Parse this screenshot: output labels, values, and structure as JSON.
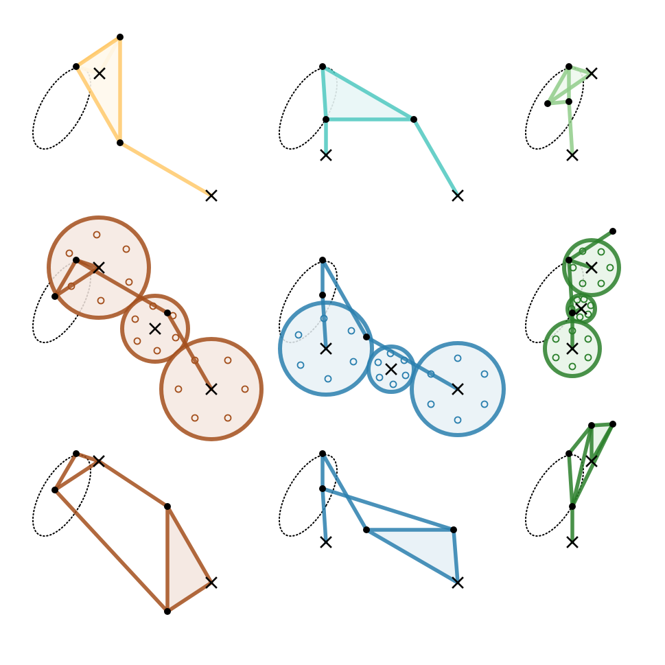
{
  "colors": {
    "background": "#ffffff",
    "marker": "#000000",
    "ellipse": "#000000",
    "panel_1": {
      "stroke": "#ffc96b",
      "fill": "#fff8ec"
    },
    "panel_2": {
      "stroke": "#4fc8c0",
      "fill": "#e8f6f6"
    },
    "panel_3": {
      "stroke": "#90cc8a",
      "fill": "#eef8ed"
    },
    "panel_4": {
      "stroke": "#a34f1c",
      "fill": "#f4e7e0"
    },
    "panel_5": {
      "stroke": "#2a7fae",
      "fill": "#e7f1f6"
    },
    "panel_6": {
      "stroke": "#2a7f2a",
      "fill": "#e6f3e6"
    },
    "panel_7": {
      "stroke": "#a34f1c",
      "fill": "#f4e7e0"
    },
    "panel_8": {
      "stroke": "#2a7fae",
      "fill": "#e7f1f6"
    },
    "panel_9": {
      "stroke": "#2a7f2a",
      "fill": "#e6f3e6"
    }
  },
  "icons": [
    "cross-marker-icon",
    "dot-marker-icon",
    "ring-marker-icon"
  ],
  "panels": [
    {
      "id": "panel-1",
      "style": "chain",
      "palette": "panel_1"
    },
    {
      "id": "panel-2",
      "style": "chain",
      "palette": "panel_2"
    },
    {
      "id": "panel-3",
      "style": "chain",
      "palette": "panel_3"
    },
    {
      "id": "panel-4",
      "style": "clusters",
      "palette": "panel_4"
    },
    {
      "id": "panel-5",
      "style": "clusters",
      "palette": "panel_5"
    },
    {
      "id": "panel-6",
      "style": "clusters",
      "palette": "panel_6"
    },
    {
      "id": "panel-7",
      "style": "chain",
      "palette": "panel_7"
    },
    {
      "id": "panel-8",
      "style": "chain",
      "palette": "panel_8"
    },
    {
      "id": "panel-9",
      "style": "chain",
      "palette": "panel_9"
    }
  ]
}
